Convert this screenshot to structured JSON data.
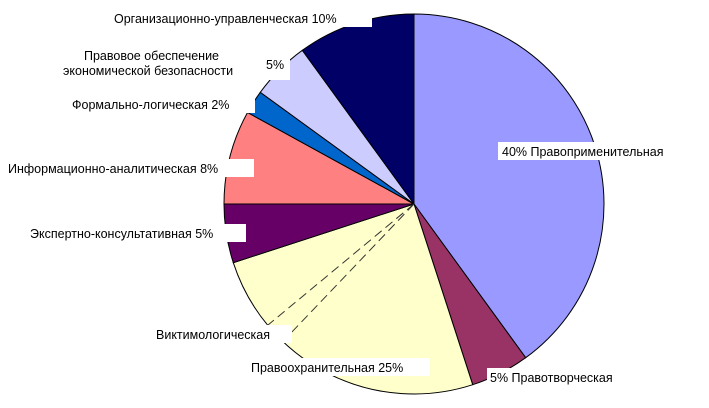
{
  "chart_data": {
    "type": "pie",
    "start_angle_deg": 0,
    "direction": "clockwise",
    "legend": "none",
    "slices": [
      {
        "name": "Правоприменительная",
        "value": 40,
        "color": "#9999ff",
        "label": "40% Правоприменительная"
      },
      {
        "name": "Правотворческая",
        "value": 5,
        "color": "#993366",
        "label": "5% Правотворческая"
      },
      {
        "name": "Правоохранительная",
        "value": 25,
        "color": "#ffffcc",
        "label": "Правоохранительная 25%"
      },
      {
        "name": "Виктимологическая",
        "value": 0,
        "color": "#ffffcc",
        "label": "Виктимологическая"
      },
      {
        "name": "Экспертно-консультативная",
        "value": 5,
        "color": "#660066",
        "label": "Экспертно-консультативная 5%"
      },
      {
        "name": "Информационно-аналитическая",
        "value": 8,
        "color": "#ff8080",
        "label": "Информационно-аналитическая 8%"
      },
      {
        "name": "Формально-логическая",
        "value": 2,
        "color": "#0066cc",
        "label": "Формально-логическая 2%"
      },
      {
        "name": "Правовое обеспечение экономической безопасности",
        "value": 5,
        "color": "#ccccff",
        "label": "Правовое обеспечение экономической безопасности 5%",
        "label_lines": [
          "Правовое обеспечение",
          "экономической безопасности"
        ],
        "label_value": "5%"
      },
      {
        "name": "Организационно-управленческая",
        "value": 10,
        "color": "#000066",
        "label": "Организационно-управленческая 10%"
      }
    ]
  }
}
